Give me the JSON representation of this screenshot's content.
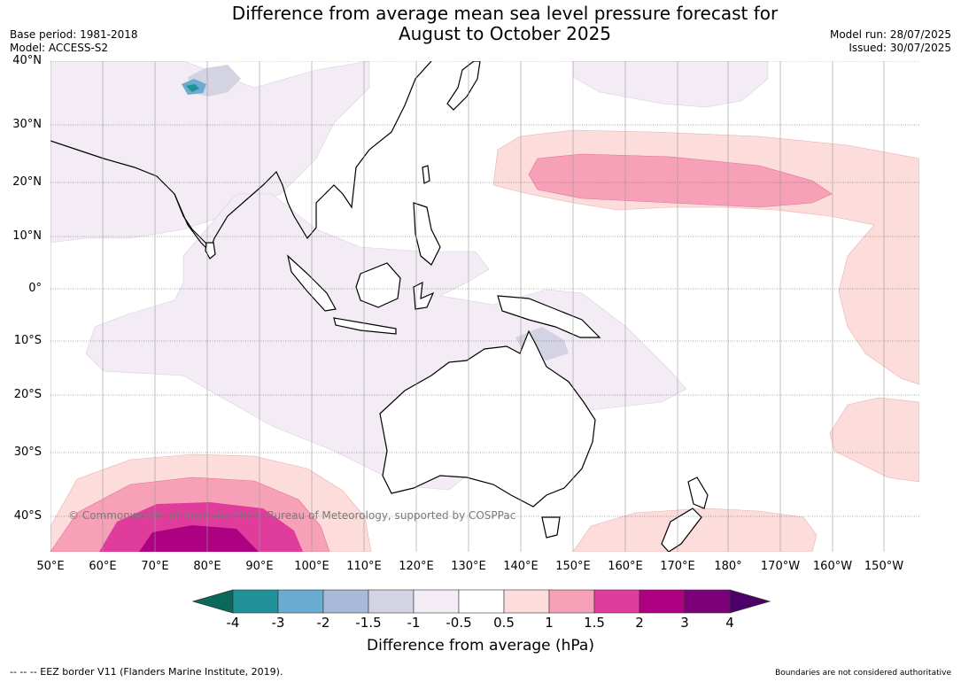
{
  "title_line1": "Difference from average mean sea level pressure forecast for",
  "title_line2": "August to October 2025",
  "base_period": "Base period: 1981-2018",
  "model": "Model: ACCESS-S2",
  "model_run": "Model run: 28/07/2025",
  "issued": "Issued: 30/07/2025",
  "copyright": "© Commonwealth of Australia 2025, Bureau of Meteorology, supported by COSPPac",
  "lat_labels": [
    "40°N",
    "30°N",
    "20°N",
    "10°N",
    "0°",
    "10°S",
    "20°S",
    "30°S",
    "40°S"
  ],
  "lon_labels": [
    "50°E",
    "60°E",
    "70°E",
    "80°E",
    "90°E",
    "100°E",
    "110°E",
    "120°E",
    "130°E",
    "140°E",
    "150°E",
    "160°E",
    "170°E",
    "180°",
    "170°W",
    "160°W",
    "150°W"
  ],
  "colorbar": {
    "ticks": [
      "-4",
      "-3",
      "-2",
      "-1.5",
      "-1",
      "-0.5",
      "0.5",
      "1",
      "1.5",
      "2",
      "3",
      "4"
    ],
    "colors": [
      "#08695c",
      "#1f9197",
      "#6aabd2",
      "#a7bbd8",
      "#d3d3e4",
      "#f3ecf5",
      "#ffffff",
      "#fddcdc",
      "#f7a1b8",
      "#e03c9c",
      "#ae0182",
      "#7c0079",
      "#4d006a"
    ],
    "label": "Difference from average (hPa)"
  },
  "footer_left": "--  --  -- EEZ border V11 (Flanders Marine Institute, 2019).",
  "footer_right": "Boundaries are not considered authoritative"
}
